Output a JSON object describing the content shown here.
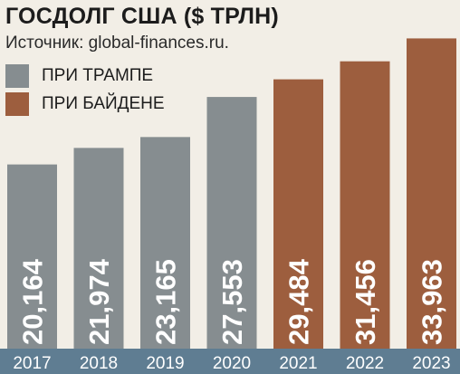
{
  "colors": {
    "background": "#f2eee6",
    "trump": "#868d90",
    "biden": "#9d5e3e",
    "axis_band": "#5f7d92",
    "bar_value_text": "#ffffff",
    "tick_text": "#ffffff"
  },
  "chart_data": {
    "type": "bar",
    "title": "ГОСДОЛГ США ($ ТРЛН)",
    "source": "Источник: global-finances.ru.",
    "categories": [
      "2017",
      "2018",
      "2019",
      "2020",
      "2021",
      "2022",
      "2023"
    ],
    "values": [
      20.164,
      21.974,
      23.165,
      27.553,
      29.484,
      31.456,
      33.963
    ],
    "value_labels": [
      "20,164",
      "21,974",
      "23,165",
      "27,553",
      "29,484",
      "31,456",
      "33,963"
    ],
    "groups": [
      "trump",
      "trump",
      "trump",
      "trump",
      "biden",
      "biden",
      "biden"
    ],
    "legend": [
      {
        "key": "trump",
        "label": "ПРИ ТРАМПЕ"
      },
      {
        "key": "biden",
        "label": "ПРИ БАЙДЕНЕ"
      }
    ],
    "legend_position": "top-left",
    "ylim": [
      0,
      34.5
    ],
    "grid": false,
    "xlabel": "",
    "ylabel": ""
  }
}
